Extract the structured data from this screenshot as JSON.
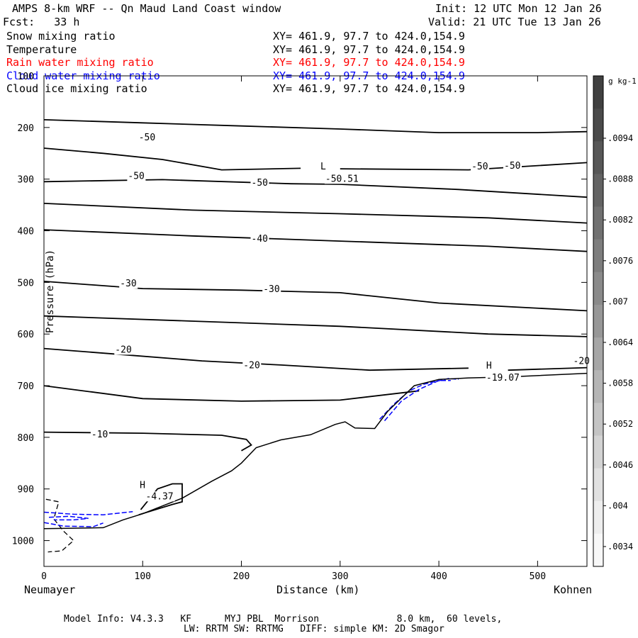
{
  "header": {
    "title": "AMPS 8-km WRF -- Qn Maud Land Coast window",
    "init": "Init: 12 UTC Mon 12 Jan 26",
    "fcst": "Fcst:   33 h",
    "valid": "Valid: 21 UTC Tue 13 Jan 26"
  },
  "fields": [
    {
      "name": "Snow mixing ratio",
      "xy": "XY= 461.9, 97.7 to 424.0,154.9",
      "color": "#000000"
    },
    {
      "name": "Temperature",
      "xy": "XY= 461.9, 97.7 to 424.0,154.9",
      "color": "#000000"
    },
    {
      "name": "Rain water mixing ratio",
      "xy": "XY= 461.9, 97.7 to 424.0,154.9",
      "color": "#ff0000"
    },
    {
      "name": "Cloud water mixing ratio",
      "xy": "XY= 461.9, 97.7 to 424.0,154.9",
      "color": "#0000ff"
    },
    {
      "name": "Cloud ice mixing ratio",
      "xy": "XY= 461.9, 97.7 to 424.0,154.9",
      "color": "#000000"
    }
  ],
  "chart_data": {
    "type": "line",
    "title": "AMPS 8-km WRF -- Qn Maud Land Coast window",
    "xlabel": "Distance (km)",
    "ylabel": "Pressure (hPa)",
    "xlim": [
      0,
      550
    ],
    "ylim": [
      1050,
      100
    ],
    "xticks": [
      0,
      100,
      200,
      300,
      400,
      500
    ],
    "yticks": [
      100,
      200,
      300,
      400,
      500,
      600,
      700,
      800,
      900,
      1000
    ],
    "x_end_labels": {
      "left": "Neumayer",
      "right": "Kohnen"
    },
    "colorbar": {
      "unit": "g kg-1",
      "labels": [
        ".0094",
        ".0088",
        ".0082",
        ".0076",
        ".007",
        ".0064",
        ".0058",
        ".0052",
        ".0046",
        ".004",
        ".0034"
      ],
      "colors": [
        "#404040",
        "#4a4a4a",
        "#575757",
        "#636363",
        "#707070",
        "#7d7d7d",
        "#8a8a8a",
        "#979797",
        "#a6a6a6",
        "#b5b5b5",
        "#c4c4c4",
        "#d3d3d3",
        "#e1e1e1",
        "#eeeeee",
        "#f8f8f8"
      ]
    },
    "temperature_contours": [
      {
        "points": [
          [
            0,
            185
          ],
          [
            100,
            191
          ],
          [
            200,
            197
          ],
          [
            300,
            203
          ],
          [
            400,
            210
          ],
          [
            500,
            210
          ],
          [
            550,
            208
          ]
        ]
      },
      {
        "points": [
          [
            0,
            240
          ],
          [
            60,
            250
          ],
          [
            120,
            262
          ],
          [
            180,
            282
          ],
          [
            260,
            279
          ]
        ]
      },
      {
        "points": [
          [
            300,
            280
          ],
          [
            430,
            282
          ],
          [
            550,
            268
          ]
        ]
      },
      {
        "points": [
          [
            0,
            305
          ],
          [
            120,
            301
          ],
          [
            250,
            309
          ],
          [
            300,
            310
          ],
          [
            420,
            320
          ],
          [
            550,
            335
          ]
        ]
      },
      {
        "points": [
          [
            0,
            347
          ],
          [
            150,
            360
          ],
          [
            300,
            367
          ],
          [
            450,
            375
          ],
          [
            550,
            385
          ]
        ]
      },
      {
        "points": [
          [
            0,
            398
          ],
          [
            150,
            410
          ],
          [
            300,
            420
          ],
          [
            450,
            430
          ],
          [
            550,
            440
          ]
        ]
      },
      {
        "points": [
          [
            0,
            498
          ],
          [
            100,
            512
          ],
          [
            200,
            515
          ],
          [
            300,
            520
          ],
          [
            400,
            540
          ],
          [
            550,
            555
          ]
        ]
      },
      {
        "points": [
          [
            0,
            565
          ],
          [
            150,
            575
          ],
          [
            300,
            585
          ],
          [
            450,
            600
          ],
          [
            550,
            605
          ]
        ]
      },
      {
        "points": [
          [
            0,
            628
          ],
          [
            80,
            640
          ],
          [
            160,
            652
          ],
          [
            240,
            660
          ],
          [
            330,
            670
          ],
          [
            430,
            666
          ]
        ]
      },
      {
        "points": [
          [
            470,
            670
          ],
          [
            550,
            665
          ]
        ]
      },
      {
        "points": [
          [
            0,
            700
          ],
          [
            100,
            725
          ],
          [
            200,
            730
          ],
          [
            300,
            728
          ],
          [
            380,
            710
          ]
        ]
      },
      {
        "points": [
          [
            0,
            790
          ],
          [
            100,
            792
          ],
          [
            180,
            796
          ],
          [
            205,
            804
          ],
          [
            210,
            815
          ],
          [
            200,
            826
          ]
        ]
      },
      {
        "points": [
          [
            96,
            950
          ],
          [
            130,
            930
          ],
          [
            140,
            925
          ],
          [
            140,
            890
          ],
          [
            130,
            890
          ],
          [
            115,
            900
          ],
          [
            98,
            940
          ]
        ]
      }
    ],
    "contour_labels": [
      {
        "x": 96,
        "y": 225,
        "text": "-50"
      },
      {
        "x": 280,
        "y": 281,
        "text": "L"
      },
      {
        "x": 285,
        "y": 305,
        "text": "-50.51"
      },
      {
        "x": 85,
        "y": 300,
        "text": "-50"
      },
      {
        "x": 210,
        "y": 313,
        "text": "-50"
      },
      {
        "x": 433,
        "y": 281,
        "text": "-50"
      },
      {
        "x": 466,
        "y": 280,
        "text": "-50"
      },
      {
        "x": 210,
        "y": 421,
        "text": "-40"
      },
      {
        "x": 77,
        "y": 508,
        "text": "-30"
      },
      {
        "x": 222,
        "y": 519,
        "text": "-30"
      },
      {
        "x": 72,
        "y": 636,
        "text": "-20"
      },
      {
        "x": 202,
        "y": 666,
        "text": "-20"
      },
      {
        "x": 536,
        "y": 658,
        "text": "-20"
      },
      {
        "x": 448,
        "y": 667,
        "text": "H"
      },
      {
        "x": 448,
        "y": 690,
        "text": "-19.07"
      },
      {
        "x": 48,
        "y": 800,
        "text": "-10"
      },
      {
        "x": 97,
        "y": 898,
        "text": "H"
      },
      {
        "x": 103,
        "y": 920,
        "text": "-4.37"
      }
    ],
    "terrain": [
      [
        0,
        977
      ],
      [
        60,
        975
      ],
      [
        80,
        960
      ],
      [
        100,
        948
      ],
      [
        140,
        918
      ],
      [
        170,
        885
      ],
      [
        190,
        865
      ],
      [
        200,
        850
      ],
      [
        215,
        820
      ],
      [
        240,
        805
      ],
      [
        270,
        795
      ],
      [
        295,
        775
      ],
      [
        305,
        770
      ],
      [
        315,
        782
      ],
      [
        335,
        783
      ],
      [
        348,
        750
      ],
      [
        375,
        700
      ],
      [
        400,
        688
      ],
      [
        430,
        685
      ],
      [
        470,
        683
      ],
      [
        550,
        676
      ]
    ],
    "snow_dashed": [
      [
        2,
        920
      ],
      [
        15,
        925
      ],
      [
        10,
        958
      ],
      [
        20,
        982
      ],
      [
        30,
        1000
      ],
      [
        18,
        1020
      ],
      [
        4,
        1022
      ]
    ],
    "cloud_water_dashed": [
      [
        [
          0,
          945
        ],
        [
          30,
          949
        ],
        [
          60,
          950
        ],
        [
          80,
          946
        ],
        [
          90,
          944
        ]
      ],
      [
        [
          0,
          965
        ],
        [
          20,
          972
        ],
        [
          50,
          973
        ],
        [
          60,
          966
        ]
      ],
      [
        [
          5,
          955
        ],
        [
          25,
          953
        ],
        [
          45,
          957
        ],
        [
          30,
          960
        ],
        [
          10,
          960
        ]
      ],
      [
        [
          340,
          765
        ],
        [
          355,
          735
        ],
        [
          370,
          710
        ],
        [
          385,
          697
        ],
        [
          410,
          686
        ],
        [
          420,
          688
        ]
      ],
      [
        [
          345,
          768
        ],
        [
          362,
          730
        ],
        [
          380,
          707
        ],
        [
          400,
          690
        ],
        [
          412,
          690
        ]
      ]
    ]
  },
  "footer": {
    "line1": "Model Info: V4.3.3   KF      MYJ PBL  Morrison              8.0 km,  60 levels,",
    "line2": "LW: RRTM SW: RRTMG   DIFF: simple KM: 2D Smagor"
  }
}
